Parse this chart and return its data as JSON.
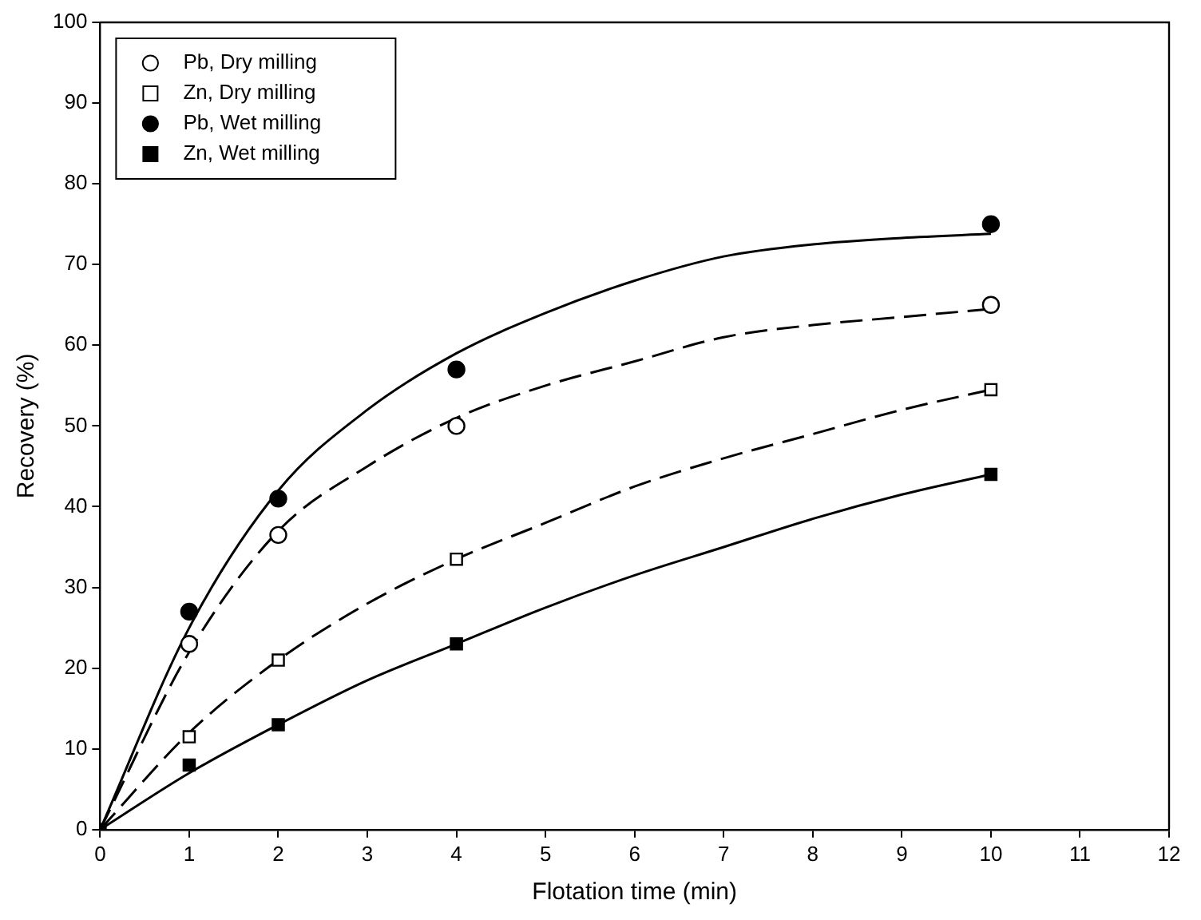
{
  "chart_data": {
    "type": "scatter",
    "xlabel": "Flotation time (min)",
    "ylabel": "Recovery (%)",
    "x": [
      0,
      1,
      2,
      4,
      10
    ],
    "series": [
      {
        "name": "Pb, Dry milling",
        "type": "scatter",
        "marker": "circle",
        "color": "#ffffff",
        "values": [
          null,
          23,
          36.5,
          50,
          65
        ]
      },
      {
        "name": "Zn, Dry milling",
        "type": "scatter",
        "marker": "square",
        "color": "#ffffff",
        "values": [
          null,
          11.5,
          21,
          33.5,
          54.5
        ]
      },
      {
        "name": "Pb, Wet milling",
        "type": "scatter",
        "marker": "circle",
        "color": "#000000",
        "values": [
          null,
          27,
          41,
          57,
          75
        ]
      },
      {
        "name": "Zn, Wet milling",
        "type": "scatter",
        "marker": "square",
        "color": "#000000",
        "values": [
          0,
          8,
          13,
          23,
          44
        ]
      },
      {
        "type": "line",
        "marker": "none",
        "line_style": "dashed",
        "color": "#000000",
        "x": [
          0,
          1,
          2,
          3,
          4,
          5,
          6,
          7,
          8,
          9,
          10
        ],
        "values": [
          0,
          22,
          37,
          45,
          51,
          55,
          58,
          61,
          62.5,
          63.5,
          64.5
        ]
      },
      {
        "type": "line",
        "marker": "none",
        "line_style": "dashed",
        "color": "#000000",
        "x": [
          0,
          1,
          2,
          3,
          4,
          5,
          6,
          7,
          8,
          9,
          10
        ],
        "values": [
          0,
          12,
          21,
          28,
          33.5,
          38,
          42.5,
          46,
          49,
          52,
          54.5
        ]
      },
      {
        "type": "line",
        "marker": "none",
        "line_style": "solid",
        "color": "#000000",
        "x": [
          0,
          1,
          2,
          3,
          4,
          5,
          6,
          7,
          8,
          9,
          10
        ],
        "values": [
          0,
          25,
          42,
          52,
          59,
          64,
          68,
          71,
          72.5,
          73.3,
          73.8
        ]
      },
      {
        "type": "line",
        "marker": "none",
        "line_style": "solid",
        "color": "#000000",
        "x": [
          0,
          1,
          2,
          3,
          4,
          5,
          6,
          7,
          8,
          9,
          10
        ],
        "values": [
          0,
          7,
          13,
          18.5,
          23,
          27.5,
          31.5,
          35,
          38.5,
          41.5,
          44
        ]
      }
    ],
    "xlim": [
      0,
      12
    ],
    "xticks": [
      0,
      1,
      2,
      3,
      4,
      5,
      6,
      7,
      8,
      9,
      10,
      11,
      12
    ],
    "ylim": [
      0,
      100
    ],
    "yticks": [
      0,
      10,
      20,
      30,
      40,
      50,
      60,
      70,
      80,
      90,
      100
    ],
    "grid": false,
    "legend": "top left"
  }
}
